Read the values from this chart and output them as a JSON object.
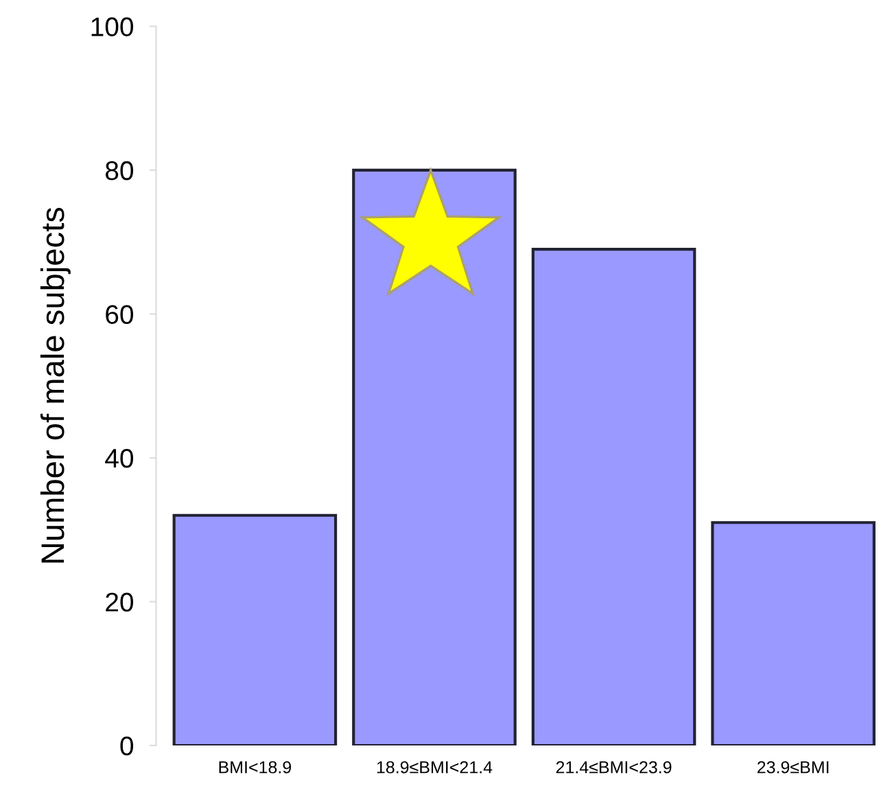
{
  "chart_data": {
    "type": "bar",
    "ylabel": "Number of male subjects",
    "categories": [
      "BMI<18.9",
      "18.9≤BMI<21.4",
      "21.4≤BMI<23.9",
      "23.9≤BMI"
    ],
    "values": [
      32,
      80,
      69,
      31
    ],
    "color": "#9999ff",
    "ylim": [
      0,
      100
    ],
    "yticks": [
      0,
      20,
      40,
      60,
      80,
      100
    ],
    "grid": false,
    "legend": false
  }
}
